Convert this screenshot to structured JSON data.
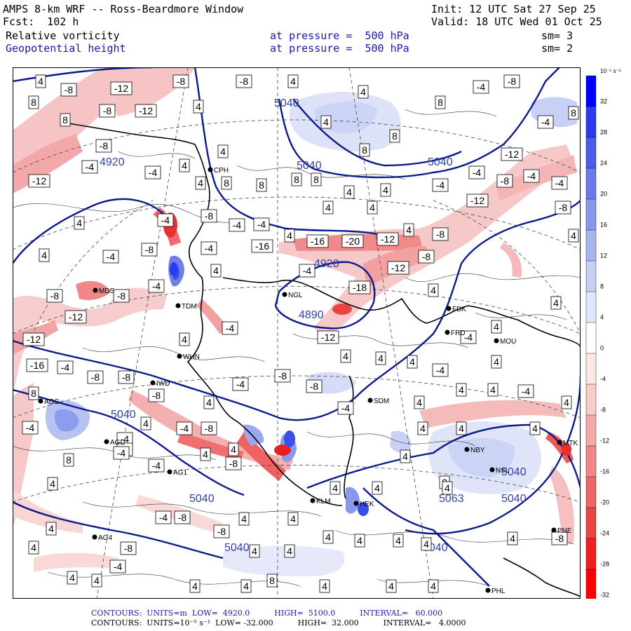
{
  "header": {
    "line1_left": "AMPS 8-km WRF -- Ross-Beardmore Window",
    "line1_right": "Init: 12 UTC Sat 27 Sep 25",
    "line2_left": "Fcst:  102 h",
    "line2_right": "Valid: 18 UTC Wed 01 Oct 25",
    "field1": "Relative vorticity",
    "field1_level": "at pressure =  500 hPa",
    "field1_sm": "sm= 3",
    "field2": "Geopotential height",
    "field2_level": "at pressure =  500 hPa",
    "field2_sm": "sm= 2"
  },
  "colors": {
    "height_contour": "#0a1a8c",
    "positive_fill": "#c8d2f5",
    "negative_fill": "#f3b8b8",
    "strong_negative": "#f04848",
    "strong_positive": "#3a4ee8"
  },
  "colorbar": {
    "unit": "10⁻⁵ s⁻¹",
    "labels": [
      "32",
      "28",
      "24",
      "20",
      "16",
      "12",
      "8",
      "4",
      "0",
      "-4",
      "-8",
      "-12",
      "-16",
      "-20",
      "-24",
      "-28",
      "-32"
    ],
    "colors": [
      "#0000ff",
      "#2a3cf0",
      "#4a5ce8",
      "#6a7ae8",
      "#8a98ec",
      "#a8b4f0",
      "#c6cef5",
      "#e2e6fb",
      "#ffffff",
      "#fde6e6",
      "#f9cccc",
      "#f4aaaa",
      "#f08888",
      "#ec6666",
      "#e84444",
      "#f02020",
      "#ff0000"
    ]
  },
  "height_labels": [
    {
      "text": "5040",
      "lat": 0
    },
    {
      "text": "4920",
      "lat": 0
    },
    {
      "text": "5040",
      "lat": 0
    },
    {
      "text": "5040",
      "lat": 0
    },
    {
      "text": "4920",
      "lat": 0
    },
    {
      "text": "4890",
      "lat": 0
    },
    {
      "text": "5040",
      "lat": 0
    },
    {
      "text": "5040",
      "lat": 0
    },
    {
      "text": "5063",
      "lat": 0
    },
    {
      "text": "5040",
      "lat": 0
    },
    {
      "text": "5040",
      "lat": 0
    },
    {
      "text": "5040",
      "lat": 0
    },
    {
      "text": "5040",
      "lat": 0
    }
  ],
  "stations": [
    "CPH",
    "NGL",
    "FDK",
    "FRD",
    "MOU",
    "TDM",
    "WHN",
    "IWD",
    "AGS",
    "AGD",
    "SDM",
    "NBY",
    "NSL",
    "KLM",
    "HEK",
    "AG1",
    "AG4",
    "PHL",
    "MTK",
    "PNE",
    "MDS"
  ],
  "footer": {
    "line1": "CONTOURS:  UNITS=m  LOW=  4920.0          HIGH=  5100.0          INTERVAL=   60.000",
    "line2": "CONTOURS:  UNITS=10⁻⁵ s⁻¹  LOW= -32.000          HIGH=  32.000          INTERVAL=   4.0000"
  }
}
